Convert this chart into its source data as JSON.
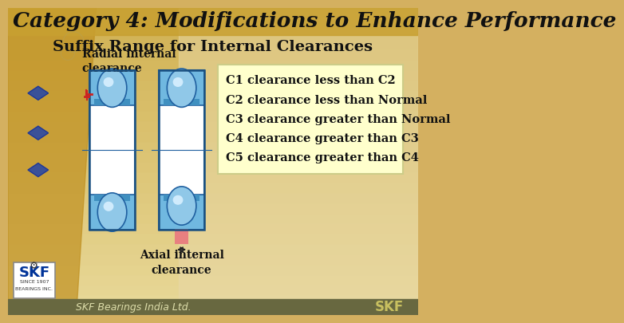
{
  "title": "Category 4: Modifications to Enhance Performance",
  "subtitle": "Suffix Range for Internal Clearances",
  "radial_label": "Radial internal\nclearance",
  "axial_label": "Axial internal\nclearance",
  "clearance_lines": [
    "C1 clearance less than C2",
    "C2 clearance less than Normal",
    "C3 clearance greater than Normal",
    "C4 clearance greater than C3",
    "C5 clearance greater than C4"
  ],
  "bg_top": "#e8c870",
  "bg_bottom": "#d4b060",
  "bg_right": "#e0cda0",
  "title_bar_color": "#c8a830",
  "left_stripe_color": "#c09020",
  "title_color": "#111111",
  "subtitle_color": "#111111",
  "box_bg": "#ffffcc",
  "box_border": "#dddd88",
  "bearing_blue_dark": "#4090c0",
  "bearing_blue_mid": "#70b8e0",
  "bearing_blue_light": "#a8d8f0",
  "bearing_white": "#ffffff",
  "ball_color": "#90c8e8",
  "ball_highlight": "#d8f0ff",
  "clearance_red": "#e88080",
  "radial_arrow_color": "#cc2222",
  "footer_bg": "#707050",
  "footer_text": "#ffffff",
  "diamond_color": "#2244aa",
  "skf_logo_blue": "#003399",
  "footer_skf_color": "#c8c060"
}
